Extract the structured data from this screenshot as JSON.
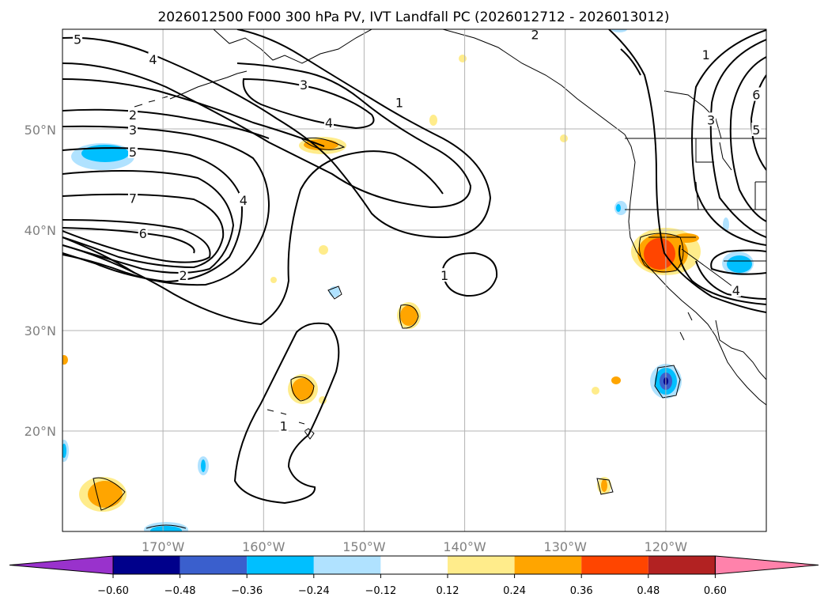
{
  "map": {
    "title": "2026012500 F000 300 hPa PV, IVT Landfall PC (2026012712 - 2026013012)",
    "extent": {
      "lon_min": -180,
      "lon_max": -110,
      "lat_min": 10,
      "lat_max": 60
    },
    "lat_ticks": [
      {
        "lat": 50,
        "label": "50°N"
      },
      {
        "lat": 40,
        "label": "40°N"
      },
      {
        "lat": 30,
        "label": "30°N"
      },
      {
        "lat": 20,
        "label": "20°N"
      }
    ],
    "lon_ticks": [
      {
        "lon": -170,
        "label": "170°W"
      },
      {
        "lon": -160,
        "label": "160°W"
      },
      {
        "lon": -150,
        "label": "150°W"
      },
      {
        "lon": -140,
        "label": "140°W"
      },
      {
        "lon": -130,
        "label": "130°W"
      },
      {
        "lon": -120,
        "label": "120°W"
      }
    ],
    "contour_labels": [
      {
        "text": "5",
        "lon": -178.5,
        "lat": 59.0
      },
      {
        "text": "4",
        "lon": -171.0,
        "lat": 57.0
      },
      {
        "text": "2",
        "lon": -173.0,
        "lat": 51.5
      },
      {
        "text": "3",
        "lon": -173.0,
        "lat": 50.0
      },
      {
        "text": "5",
        "lon": -173.0,
        "lat": 47.8
      },
      {
        "text": "7",
        "lon": -173.0,
        "lat": 43.2
      },
      {
        "text": "6",
        "lon": -172.0,
        "lat": 39.7
      },
      {
        "text": "2",
        "lon": -168.0,
        "lat": 35.5
      },
      {
        "text": "4",
        "lon": -162.0,
        "lat": 43.0
      },
      {
        "text": "3",
        "lon": -156.0,
        "lat": 54.5
      },
      {
        "text": "4",
        "lon": -153.5,
        "lat": 50.7
      },
      {
        "text": "1",
        "lon": -146.5,
        "lat": 52.7
      },
      {
        "text": "2",
        "lon": -133.0,
        "lat": 59.5
      },
      {
        "text": "1",
        "lon": -142.0,
        "lat": 35.5
      },
      {
        "text": "1",
        "lon": -116.0,
        "lat": 57.5
      },
      {
        "text": "6",
        "lon": -111.0,
        "lat": 53.5
      },
      {
        "text": "3",
        "lon": -115.5,
        "lat": 51.0
      },
      {
        "text": "5",
        "lon": -111.0,
        "lat": 50.0
      },
      {
        "text": "4",
        "lon": -113.0,
        "lat": 34.0
      },
      {
        "text": "1",
        "lon": -158.0,
        "lat": 20.5
      }
    ]
  },
  "colorbar": {
    "colors": [
      "#9932cc",
      "#00008b",
      "#3a5fcd",
      "#00bfff",
      "#b0e2ff",
      "#ffffff",
      "#ffec8b",
      "#ffa500",
      "#ff4500",
      "#b22222",
      "#ff82ab"
    ],
    "ticks": [
      "−0.60",
      "−0.48",
      "−0.36",
      "−0.24",
      "−0.12",
      "0.12",
      "0.24",
      "0.36",
      "0.48",
      "0.60"
    ]
  }
}
